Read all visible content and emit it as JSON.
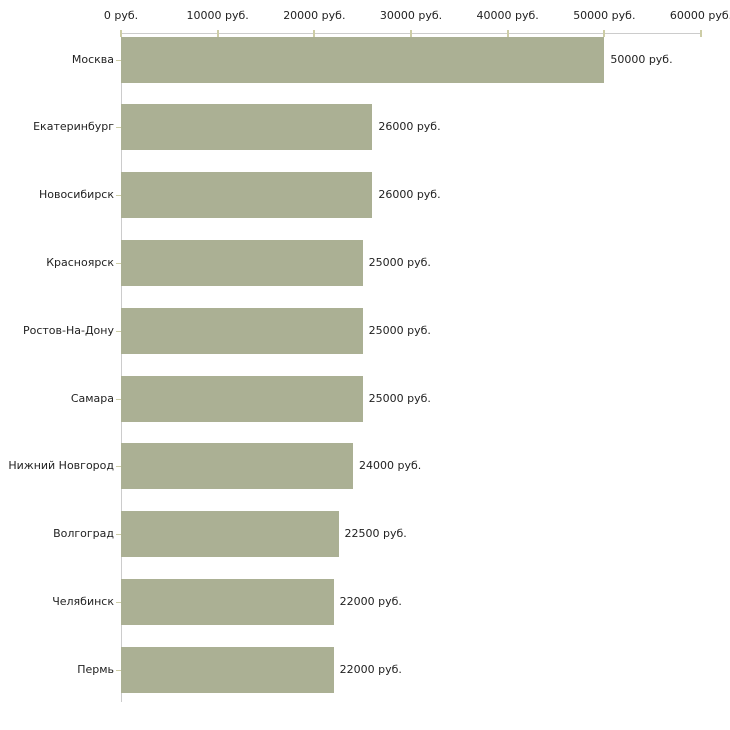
{
  "chart_data": {
    "type": "bar",
    "orientation": "horizontal",
    "categories": [
      "Москва",
      "Екатеринбург",
      "Новосибирск",
      "Красноярск",
      "Ростов-На-Дону",
      "Самара",
      "Нижний Новгород",
      "Волгоград",
      "Челябинск",
      "Пермь"
    ],
    "values": [
      50000,
      26000,
      26000,
      25000,
      25000,
      25000,
      24000,
      22500,
      22000,
      22000
    ],
    "bar_labels": [
      "50000 руб.",
      "26000 руб.",
      "26000 руб.",
      "25000 руб.",
      "25000 руб.",
      "25000 руб.",
      "24000 руб.",
      "22500 руб.",
      "22000 руб.",
      "22000 руб."
    ],
    "x_ticks": [
      0,
      10000,
      20000,
      30000,
      40000,
      50000,
      60000
    ],
    "x_tick_labels": [
      "0 руб.",
      "10000 руб.",
      "20000 руб.",
      "30000 руб.",
      "40000 руб.",
      "50000 руб.",
      "60000 руб."
    ],
    "xlim": [
      0,
      60000
    ],
    "grid": false,
    "legend": false,
    "colors": {
      "bar": "#abb094",
      "axis": "#cccccc",
      "tick": "#cdcda6",
      "text": "#222222",
      "background": "#ffffff"
    }
  }
}
